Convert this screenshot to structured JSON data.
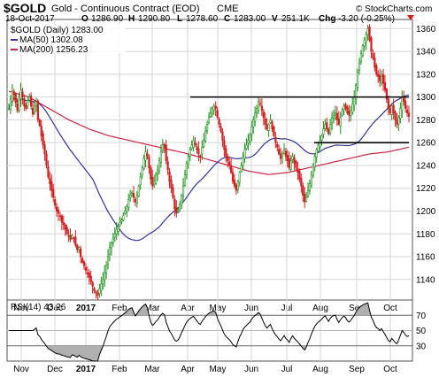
{
  "header": {
    "symbol": "$GOLD",
    "description": "Gold - Continuous Contract (EOD)",
    "exchange": "CME",
    "watermark": "© StockCharts.com",
    "date": "18-Oct-2017",
    "open_label": "O",
    "open_value": "1286.90",
    "high_label": "H",
    "high_value": "1290.80",
    "low_label": "L",
    "low_value": "1278.60",
    "close_label": "C",
    "close_value": "1283.00",
    "volume_label": "V",
    "volume_value": "251.1K",
    "change_label": "Chg",
    "change_value": "-3.20 (-0.25%)",
    "change_arrow": "down-triangle-icon"
  },
  "legend": {
    "main_label": "$GOLD (Daily) 1283.00",
    "ma50_label": "MA(50) 1302.08",
    "ma200_label": "MA(200) 1256.23"
  },
  "rsi_legend": "RSI(14) 43.26",
  "colors": {
    "bull": "#1a8f1a",
    "bear": "#d01f1f",
    "ma50": "#33339a",
    "ma200": "#cc2244",
    "grid": "#d6d6d6",
    "rsi_line": "#000000",
    "rsi_overbought_fill": "#b0b0b0",
    "rsi_oversold_fill": "#b0b0b0"
  },
  "chart_data": [
    {
      "type": "candlestick",
      "title": "$GOLD (Daily) 1283.00",
      "x_labels": [
        "Nov",
        "Dec",
        "2017",
        "Feb",
        "Mar",
        "Apr",
        "May",
        "Jun",
        "Jul",
        "Aug",
        "Sep",
        "Oct"
      ],
      "y_ticks": [
        1140,
        1160,
        1180,
        1200,
        1220,
        1240,
        1260,
        1280,
        1300,
        1320,
        1340,
        1360
      ],
      "ylim": [
        1122,
        1368
      ],
      "grid": true,
      "axis_position": "right",
      "close_series": [
        1290,
        1298,
        1305,
        1302,
        1295,
        1288,
        1300,
        1306,
        1300,
        1292,
        1290,
        1297,
        1300,
        1292,
        1285,
        1292,
        1296,
        1280,
        1275,
        1266,
        1258,
        1250,
        1240,
        1230,
        1224,
        1218,
        1212,
        1205,
        1200,
        1198,
        1196,
        1190,
        1188,
        1184,
        1180,
        1178,
        1175,
        1178,
        1176,
        1170,
        1166,
        1168,
        1160,
        1155,
        1152,
        1148,
        1145,
        1142,
        1138,
        1134,
        1130,
        1128,
        1126,
        1132,
        1136,
        1140,
        1146,
        1152,
        1160,
        1168,
        1172,
        1176,
        1180,
        1184,
        1186,
        1190,
        1192,
        1196,
        1200,
        1204,
        1210,
        1214,
        1216,
        1212,
        1208,
        1214,
        1222,
        1230,
        1238,
        1246,
        1252,
        1248,
        1238,
        1228,
        1222,
        1226,
        1232,
        1236,
        1244,
        1252,
        1258,
        1256,
        1244,
        1236,
        1226,
        1220,
        1212,
        1202,
        1198,
        1200,
        1206,
        1214,
        1222,
        1232,
        1242,
        1248,
        1254,
        1258,
        1262,
        1258,
        1254,
        1250,
        1248,
        1256,
        1262,
        1270,
        1276,
        1282,
        1286,
        1290,
        1292,
        1290,
        1282,
        1276,
        1270,
        1262,
        1254,
        1248,
        1244,
        1240,
        1234,
        1226,
        1222,
        1218,
        1226,
        1234,
        1240,
        1248,
        1254,
        1258,
        1262,
        1266,
        1274,
        1280,
        1286,
        1290,
        1296,
        1294,
        1288,
        1282,
        1276,
        1272,
        1276,
        1280,
        1272,
        1266,
        1260,
        1256,
        1250,
        1246,
        1250,
        1254,
        1248,
        1244,
        1238,
        1244,
        1248,
        1242,
        1238,
        1234,
        1228,
        1222,
        1214,
        1208,
        1212,
        1218,
        1224,
        1232,
        1240,
        1248,
        1254,
        1258,
        1262,
        1266,
        1272,
        1276,
        1272,
        1268,
        1276,
        1282,
        1284,
        1286,
        1280,
        1276,
        1282,
        1288,
        1292,
        1290,
        1286,
        1284,
        1288,
        1294,
        1300,
        1310,
        1322,
        1330,
        1338,
        1345,
        1350,
        1355,
        1360,
        1350,
        1340,
        1334,
        1326,
        1320,
        1318,
        1314,
        1318,
        1312,
        1306,
        1298,
        1290,
        1286,
        1292,
        1286,
        1280,
        1276,
        1282,
        1290,
        1300,
        1296,
        1290,
        1286,
        1283
      ],
      "annotations": [
        {
          "type": "horizontal-line",
          "value": 1300
        },
        {
          "type": "horizontal-line",
          "value": 1260
        }
      ]
    },
    {
      "type": "line",
      "title": "RSI(14) 43.26",
      "x_labels": [
        "Nov",
        "Dec",
        "2017",
        "Feb",
        "Mar",
        "Apr",
        "May",
        "Jun",
        "Jul",
        "Aug",
        "Sep",
        "Oct"
      ],
      "y_ticks": [
        30,
        50,
        70
      ],
      "ylim": [
        10,
        90
      ],
      "reference_lines": [
        30,
        50,
        70
      ],
      "series_name": "RSI(14)",
      "last_value": 43.26
    }
  ]
}
